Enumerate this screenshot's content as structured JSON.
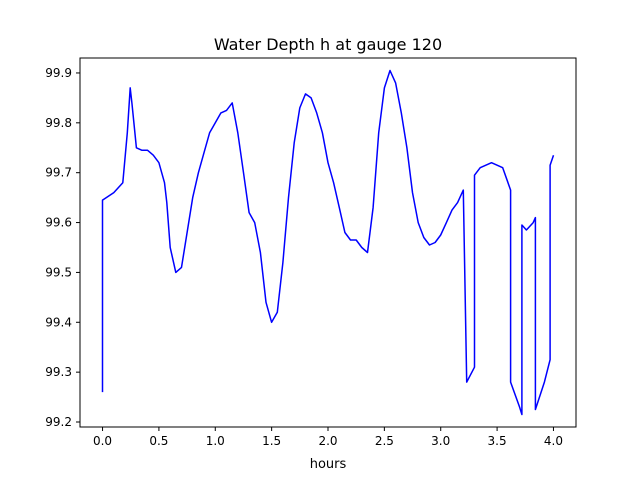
{
  "chart_data": {
    "type": "line",
    "title": "Water Depth h at gauge 120",
    "xlabel": "hours",
    "ylabel": "",
    "xlim": [
      -0.2,
      4.2
    ],
    "ylim": [
      99.19,
      99.93
    ],
    "xticks": [
      0.0,
      0.5,
      1.0,
      1.5,
      2.0,
      2.5,
      3.0,
      3.5,
      4.0
    ],
    "xtick_labels": [
      "0.0",
      "0.5",
      "1.0",
      "1.5",
      "2.0",
      "2.5",
      "3.0",
      "3.5",
      "4.0"
    ],
    "yticks": [
      99.2,
      99.3,
      99.4,
      99.5,
      99.6,
      99.7,
      99.8,
      99.9
    ],
    "ytick_labels": [
      "99.2",
      "99.3",
      "99.4",
      "99.5",
      "99.6",
      "99.7",
      "99.8",
      "99.9"
    ],
    "grid": false,
    "series_color": "#0000ff",
    "series": [
      {
        "name": "",
        "x": [
          0.0,
          0.0,
          0.02,
          0.1,
          0.18,
          0.22,
          0.245,
          0.26,
          0.3,
          0.35,
          0.4,
          0.45,
          0.5,
          0.55,
          0.57,
          0.6,
          0.65,
          0.7,
          0.75,
          0.8,
          0.85,
          0.9,
          0.95,
          1.0,
          1.05,
          1.1,
          1.15,
          1.2,
          1.25,
          1.3,
          1.35,
          1.4,
          1.45,
          1.5,
          1.55,
          1.6,
          1.65,
          1.7,
          1.75,
          1.8,
          1.85,
          1.9,
          1.95,
          2.0,
          2.05,
          2.1,
          2.15,
          2.2,
          2.25,
          2.3,
          2.35,
          2.4,
          2.45,
          2.5,
          2.55,
          2.6,
          2.65,
          2.7,
          2.75,
          2.8,
          2.85,
          2.9,
          2.95,
          3.0,
          3.05,
          3.1,
          3.15,
          3.2,
          3.23,
          3.23,
          3.3,
          3.3,
          3.35,
          3.45,
          3.55,
          3.62,
          3.62,
          3.7,
          3.72,
          3.72,
          3.76,
          3.82,
          3.84,
          3.84,
          3.92,
          3.97,
          3.97,
          4.0
        ],
        "y": [
          99.26,
          99.645,
          99.648,
          99.66,
          99.68,
          99.78,
          99.87,
          99.84,
          99.75,
          99.745,
          99.745,
          99.735,
          99.72,
          99.68,
          99.64,
          99.55,
          99.5,
          99.51,
          99.58,
          99.65,
          99.7,
          99.74,
          99.78,
          99.8,
          99.82,
          99.825,
          99.84,
          99.78,
          99.7,
          99.62,
          99.6,
          99.54,
          99.44,
          99.4,
          99.42,
          99.52,
          99.65,
          99.76,
          99.83,
          99.858,
          99.85,
          99.82,
          99.78,
          99.72,
          99.68,
          99.63,
          99.58,
          99.565,
          99.565,
          99.55,
          99.54,
          99.63,
          99.78,
          99.87,
          99.905,
          99.88,
          99.82,
          99.75,
          99.66,
          99.6,
          99.57,
          99.555,
          99.56,
          99.575,
          99.6,
          99.625,
          99.64,
          99.665,
          99.28,
          99.28,
          99.31,
          99.695,
          99.71,
          99.72,
          99.71,
          99.665,
          99.28,
          99.23,
          99.215,
          99.595,
          99.585,
          99.6,
          99.61,
          99.225,
          99.28,
          99.325,
          99.715,
          99.735
        ]
      }
    ]
  }
}
